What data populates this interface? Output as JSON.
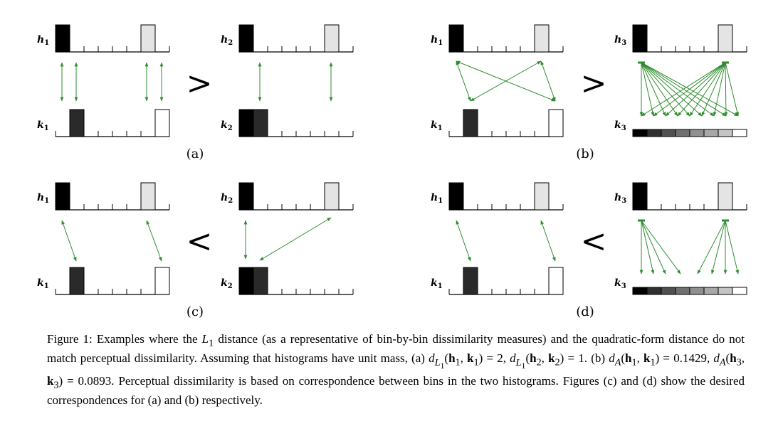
{
  "figure": {
    "panels": [
      {
        "id": "a",
        "label": "(a)",
        "comparison": ">"
      },
      {
        "id": "b",
        "label": "(b)",
        "comparison": ">"
      },
      {
        "id": "c",
        "label": "(c)",
        "comparison": "<"
      },
      {
        "id": "d",
        "label": "(d)",
        "comparison": "<"
      }
    ],
    "histogram_labels": {
      "h1": {
        "base": "h",
        "sub": "1"
      },
      "h2": {
        "base": "h",
        "sub": "2"
      },
      "h3": {
        "base": "h",
        "sub": "3"
      },
      "k1": {
        "base": "k",
        "sub": "1"
      },
      "k2": {
        "base": "k",
        "sub": "2"
      },
      "k3": {
        "base": "k",
        "sub": "3"
      }
    },
    "colors": {
      "arrow": "#2e8b2e",
      "black_bin": "#000000",
      "dark_bin": "#2a2a2a",
      "light_bin": "#e4e4e4",
      "white_bin": "#ffffff",
      "gradient_bins": [
        "#000000",
        "#303030",
        "#505050",
        "#707070",
        "#909090",
        "#a8a8a8",
        "#c4c4c4",
        "#ffffff"
      ]
    }
  },
  "caption": {
    "figure_label": "Figure 1:",
    "t1": "Examples where the ",
    "L": "L",
    "L_sub": "1",
    "t2": " distance (as a representative of bin-by-bin dissimilarity measures) and the quadratic-form distance do not match perceptual dissimilarity. Assuming that histograms have unit mass, (a) ",
    "eq1": "d",
    "eq1_sub": "L",
    "eq1_subsub": "1",
    "eq1_args": "(h",
    "eq1_rest": ", k",
    "eq1_val": ") = 2, ",
    "eq2_val": ") = 1.",
    "t3": " (b) ",
    "dA": "d",
    "dA_sub": "A",
    "eq3_val": ") = 0.1429, ",
    "eq4_val": ") = 0.0893.",
    "t4": " Perceptual dissimilarity is based on correspondence between bins in the two histograms. Figures (c) and (d) show the desired correspondences for (a) and (b) respectively."
  }
}
